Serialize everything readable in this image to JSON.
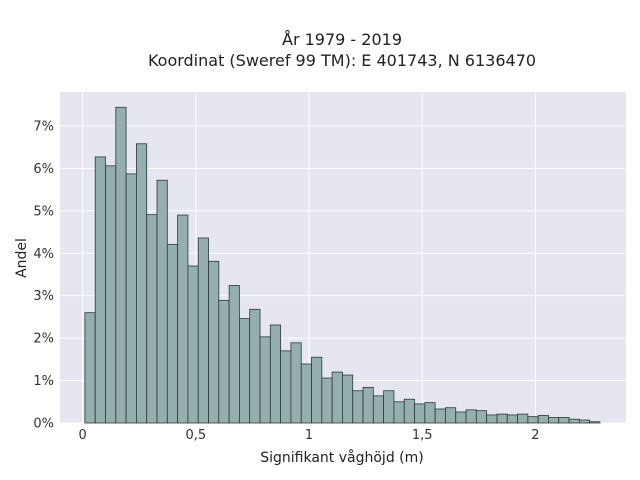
{
  "chart_data": {
    "type": "bar",
    "title": "År 1979 - 2019",
    "subtitle": "Koordinat (Sweref 99 TM): E 401743, N 6136470",
    "xlabel": "Signifikant våghöjd (m)",
    "ylabel": "Andel",
    "xlim": [
      -0.1,
      2.4
    ],
    "ylim": [
      0,
      7.8
    ],
    "grid": true,
    "x_ticks": [
      {
        "value": 0,
        "label": "0"
      },
      {
        "value": 0.5,
        "label": "0,5"
      },
      {
        "value": 1,
        "label": "1"
      },
      {
        "value": 1.5,
        "label": "1,5"
      },
      {
        "value": 2,
        "label": "2"
      }
    ],
    "y_ticks": [
      {
        "value": 0,
        "label": "0%"
      },
      {
        "value": 1,
        "label": "1%"
      },
      {
        "value": 2,
        "label": "2%"
      },
      {
        "value": 3,
        "label": "3%"
      },
      {
        "value": 4,
        "label": "4%"
      },
      {
        "value": 5,
        "label": "5%"
      },
      {
        "value": 6,
        "label": "6%"
      },
      {
        "value": 7,
        "label": "7%"
      }
    ],
    "bin_start": 0.01,
    "bin_width": 0.0455,
    "values": [
      2.6,
      6.27,
      6.06,
      7.44,
      5.87,
      6.58,
      4.91,
      5.72,
      4.21,
      4.9,
      3.7,
      4.36,
      3.81,
      2.89,
      3.24,
      2.46,
      2.68,
      2.03,
      2.31,
      1.7,
      1.89,
      1.39,
      1.55,
      1.06,
      1.2,
      1.13,
      0.76,
      0.84,
      0.64,
      0.76,
      0.5,
      0.56,
      0.45,
      0.48,
      0.33,
      0.36,
      0.26,
      0.31,
      0.29,
      0.19,
      0.21,
      0.19,
      0.21,
      0.15,
      0.18,
      0.13,
      0.13,
      0.09,
      0.07,
      0.03
    ]
  }
}
